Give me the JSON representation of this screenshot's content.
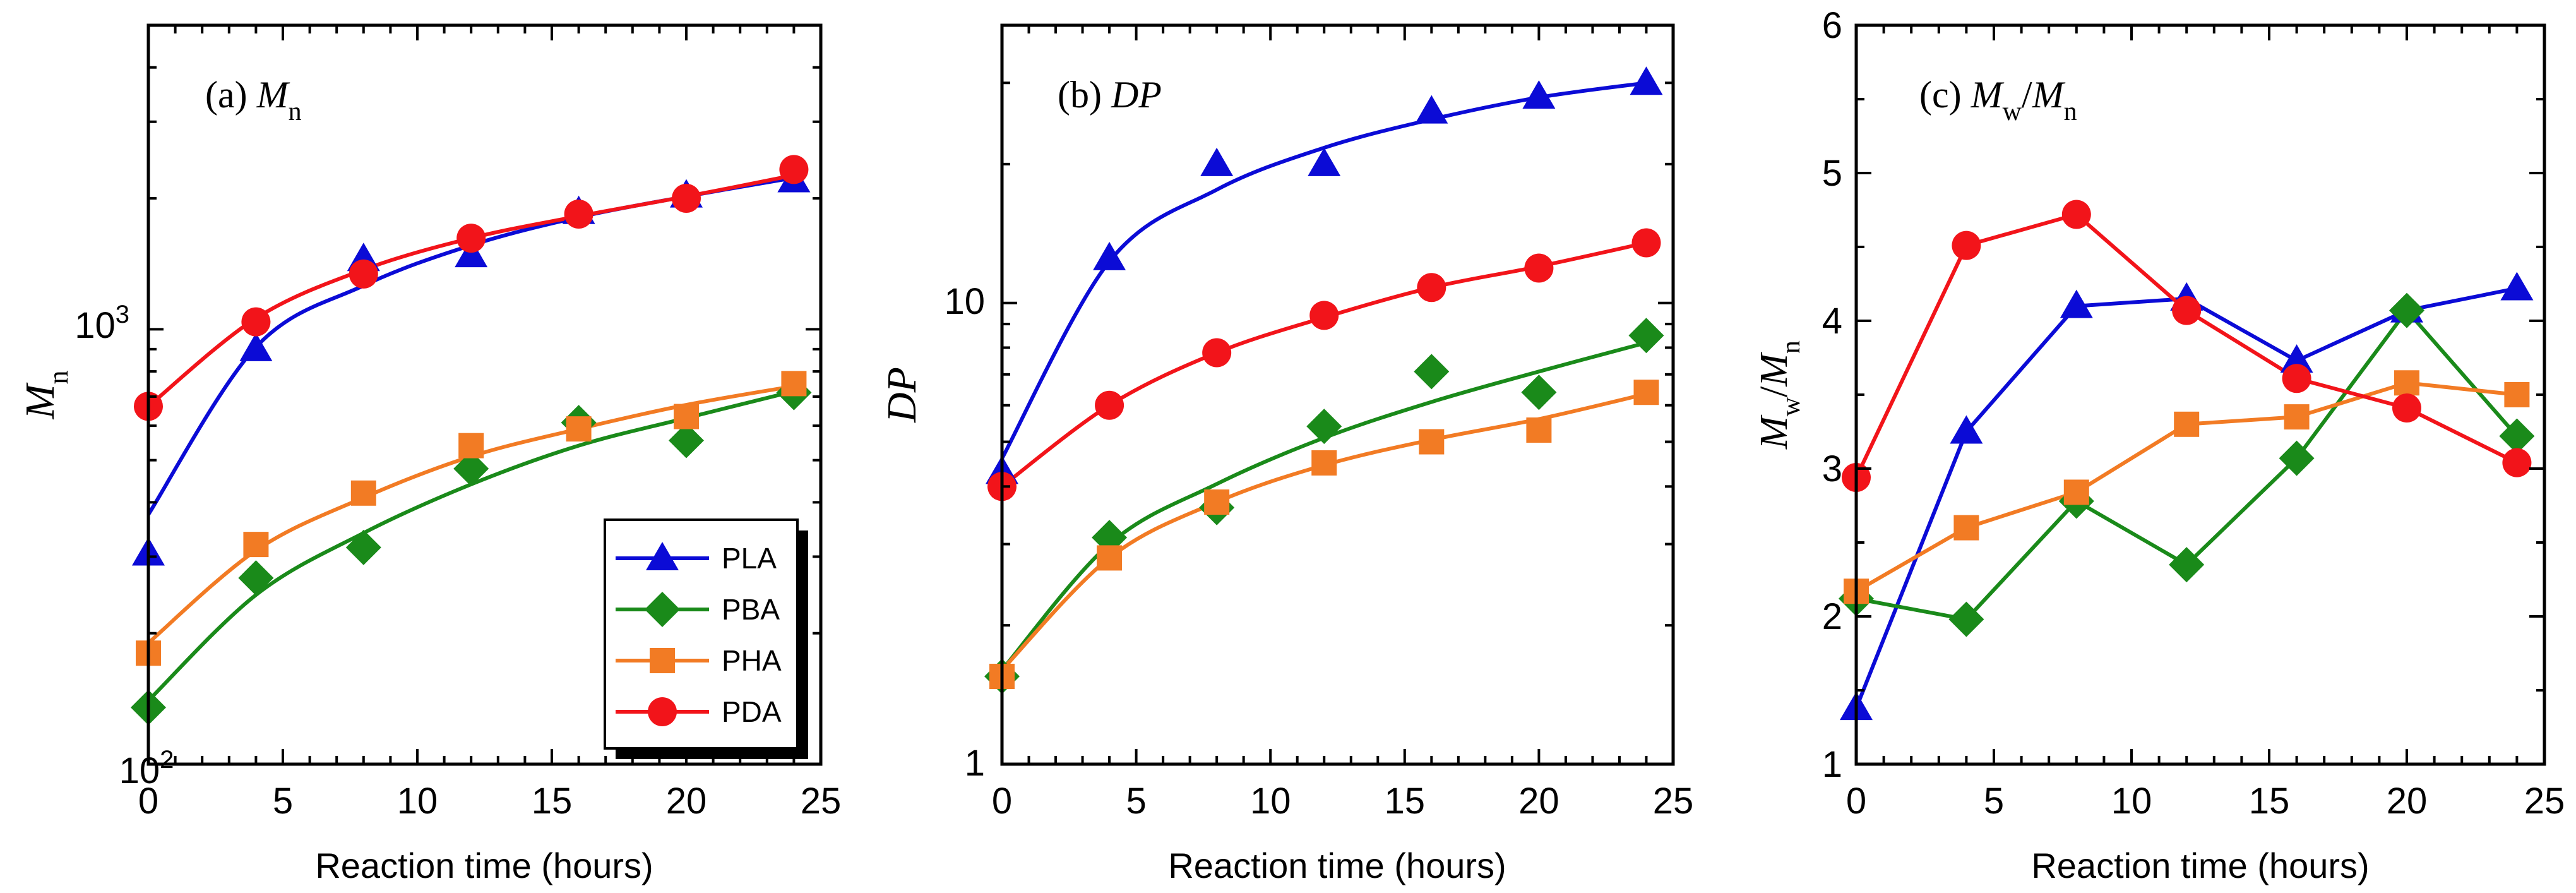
{
  "colors": {
    "PLA": "#0b0bd6",
    "PBA": "#1a8a1a",
    "PHA": "#f27b24",
    "PDA": "#f2141a",
    "axis": "#000000"
  },
  "legend": {
    "entries": [
      {
        "name": "PLA",
        "marker": "triangle"
      },
      {
        "name": "PBA",
        "marker": "diamond"
      },
      {
        "name": "PHA",
        "marker": "square"
      },
      {
        "name": "PDA",
        "marker": "circle"
      }
    ]
  },
  "chart_data": [
    {
      "id": "a",
      "type": "scatter",
      "yscale": "log",
      "title": "(a) M_n",
      "title_prefix": "(a) ",
      "title_main": "M",
      "title_sub": "n",
      "xlabel": "Reaction time (hours)",
      "ylabel": "M_n",
      "ylabel_main": "M",
      "ylabel_sub": "n",
      "xlim": [
        0,
        25
      ],
      "ylim": [
        100,
        5000
      ],
      "xticks": [
        0,
        5,
        10,
        15,
        20,
        25
      ],
      "yticks_labeled": [
        {
          "value": 100,
          "base": "10",
          "exp": "2"
        },
        {
          "value": 1000,
          "base": "10",
          "exp": "3"
        }
      ],
      "legend_location": "lower-right",
      "x": [
        0,
        4,
        8,
        12,
        16,
        20,
        24
      ],
      "series": [
        {
          "name": "PLA",
          "marker": "triangle",
          "values": [
            305,
            900,
            1450,
            1480,
            1860,
            2030,
            2200
          ],
          "fit": [
            375,
            910,
            1260,
            1560,
            1810,
            2020,
            2230
          ]
        },
        {
          "name": "PBA",
          "marker": "diamond",
          "values": [
            135,
            268,
            315,
            478,
            610,
            555,
            715
          ],
          "fit": [
            140,
            245,
            340,
            440,
            540,
            625,
            720
          ]
        },
        {
          "name": "PHA",
          "marker": "square",
          "values": [
            180,
            320,
            420,
            540,
            590,
            630,
            750
          ],
          "fit": [
            190,
            310,
            410,
            510,
            590,
            670,
            740
          ]
        },
        {
          "name": "PDA",
          "marker": "circle",
          "values": [
            665,
            1040,
            1340,
            1620,
            1840,
            2000,
            2330
          ],
          "fit": [
            665,
            1060,
            1370,
            1620,
            1820,
            2020,
            2260
          ]
        }
      ]
    },
    {
      "id": "b",
      "type": "scatter",
      "yscale": "log",
      "title": "(b) DP",
      "title_prefix": "(b) ",
      "title_main": "DP",
      "xlabel": "Reaction time (hours)",
      "ylabel": "DP",
      "xlim": [
        0,
        25
      ],
      "ylim": [
        1,
        40
      ],
      "xticks": [
        0,
        5,
        10,
        15,
        20,
        25
      ],
      "yticks_labeled": [
        {
          "value": 1,
          "label": "1"
        },
        {
          "value": 10,
          "label": "10"
        }
      ],
      "x": [
        0,
        4,
        8,
        12,
        16,
        20,
        24
      ],
      "series": [
        {
          "name": "PLA",
          "marker": "triangle",
          "values": [
            4.3,
            12.5,
            20.0,
            20.0,
            26.0,
            28.0,
            30.0
          ],
          "fit": [
            4.6,
            12.3,
            17.6,
            21.7,
            25.0,
            27.9,
            30.0
          ]
        },
        {
          "name": "PBA",
          "marker": "diamond",
          "values": [
            1.55,
            3.1,
            3.6,
            5.4,
            7.1,
            6.4,
            8.5
          ],
          "fit": [
            1.6,
            3.0,
            4.05,
            5.1,
            6.1,
            7.1,
            8.2
          ]
        },
        {
          "name": "PHA",
          "marker": "square",
          "values": [
            1.55,
            2.8,
            3.7,
            4.5,
            5.0,
            5.3,
            6.4
          ],
          "fit": [
            1.6,
            2.8,
            3.7,
            4.45,
            5.05,
            5.6,
            6.35
          ]
        },
        {
          "name": "PDA",
          "marker": "circle",
          "values": [
            4.0,
            6.0,
            7.8,
            9.4,
            10.8,
            11.9,
            13.5
          ],
          "fit": [
            4.0,
            6.0,
            7.8,
            9.3,
            10.8,
            12.0,
            13.5
          ]
        }
      ]
    },
    {
      "id": "c",
      "type": "line",
      "yscale": "linear",
      "title": "(c) M_w/M_n",
      "title_prefix": "(c) ",
      "title_main1": "M",
      "title_sub1": "w",
      "title_mid": "/",
      "title_main2": "M",
      "title_sub2": "n",
      "xlabel": "Reaction time (hours)",
      "ylabel": "M_w/M_n",
      "xlim": [
        0,
        25
      ],
      "ylim": [
        1,
        6
      ],
      "xticks": [
        0,
        5,
        10,
        15,
        20,
        25
      ],
      "yticks": [
        1,
        2,
        3,
        4,
        5,
        6
      ],
      "x": [
        0,
        4,
        8,
        12,
        16,
        20,
        24
      ],
      "series": [
        {
          "name": "PLA",
          "marker": "triangle",
          "values": [
            1.38,
            3.25,
            4.1,
            4.15,
            3.73,
            4.07,
            4.22
          ]
        },
        {
          "name": "PBA",
          "marker": "diamond",
          "values": [
            2.12,
            1.98,
            2.78,
            2.35,
            3.07,
            4.07,
            3.22
          ]
        },
        {
          "name": "PHA",
          "marker": "square",
          "values": [
            2.17,
            2.6,
            2.84,
            3.3,
            3.35,
            3.58,
            3.5
          ]
        },
        {
          "name": "PDA",
          "marker": "circle",
          "values": [
            2.94,
            4.51,
            4.72,
            4.07,
            3.61,
            3.41,
            3.04
          ]
        }
      ]
    }
  ]
}
